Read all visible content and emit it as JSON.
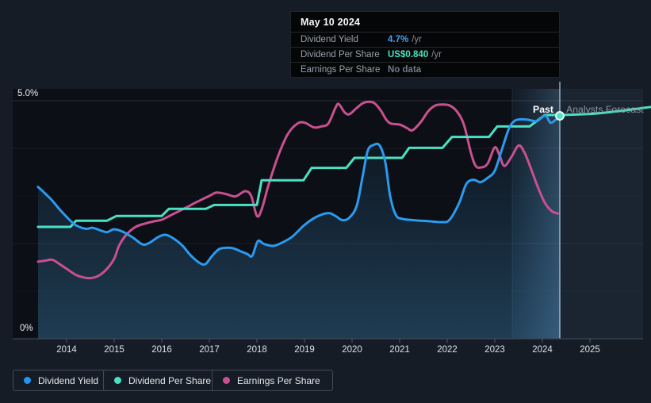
{
  "tooltip": {
    "date": "May 10 2024",
    "rows": [
      {
        "label": "Dividend Yield",
        "value": "4.7%",
        "suffix": "/yr",
        "color": "#3da3f5"
      },
      {
        "label": "Dividend Per Share",
        "value": "US$0.840",
        "suffix": "/yr",
        "color": "#46e3c2"
      },
      {
        "label": "Earnings Per Share",
        "value": "No data",
        "suffix": "",
        "color": "#737b86"
      }
    ]
  },
  "annotations": {
    "past": "Past",
    "forecast": "Analysts Forecast"
  },
  "y_axis": {
    "top_label": "5.0%",
    "bottom_label": "0%"
  },
  "legend": [
    {
      "label": "Dividend Yield",
      "color": "#2196f3"
    },
    {
      "label": "Dividend Per Share",
      "color": "#4be0c3"
    },
    {
      "label": "Earnings Per Share",
      "color": "#c9508f"
    }
  ],
  "chart_data": {
    "type": "line",
    "axis_units": "percent_yield_scale",
    "title": "",
    "xlabel": "",
    "ylabel": "",
    "x_ticks": [
      "2014",
      "2015",
      "2016",
      "2017",
      "2018",
      "2019",
      "2020",
      "2021",
      "2022",
      "2023",
      "2024",
      "2025"
    ],
    "x_range_years": [
      2013.4,
      2026.28
    ],
    "y_range_percent": [
      0,
      5.28
    ],
    "gridlines_percent": [
      5.0,
      4.0,
      2.0
    ],
    "grid": true,
    "legend_position": "bottom-left",
    "past_forecast_divider_year": 2024.37,
    "highlight_band_years": [
      2023.37,
      2024.37
    ],
    "marker_point": {
      "year": 2024.37,
      "value": 4.7
    },
    "series": [
      {
        "name": "Dividend Yield",
        "color": "#2b9af0",
        "style": "smooth",
        "area_fill": true,
        "points": [
          [
            2013.4,
            3.19
          ],
          [
            2013.55,
            3.05
          ],
          [
            2013.7,
            2.9
          ],
          [
            2013.85,
            2.72
          ],
          [
            2014.0,
            2.56
          ],
          [
            2014.1,
            2.46
          ],
          [
            2014.2,
            2.38
          ],
          [
            2014.4,
            2.31
          ],
          [
            2014.55,
            2.33
          ],
          [
            2014.7,
            2.28
          ],
          [
            2014.85,
            2.24
          ],
          [
            2015.0,
            2.3
          ],
          [
            2015.2,
            2.24
          ],
          [
            2015.4,
            2.12
          ],
          [
            2015.6,
            1.98
          ],
          [
            2015.75,
            2.02
          ],
          [
            2015.93,
            2.14
          ],
          [
            2016.1,
            2.18
          ],
          [
            2016.3,
            2.07
          ],
          [
            2016.45,
            1.94
          ],
          [
            2016.6,
            1.76
          ],
          [
            2016.8,
            1.59
          ],
          [
            2016.92,
            1.57
          ],
          [
            2017.05,
            1.73
          ],
          [
            2017.2,
            1.88
          ],
          [
            2017.35,
            1.91
          ],
          [
            2017.5,
            1.9
          ],
          [
            2017.65,
            1.84
          ],
          [
            2017.8,
            1.78
          ],
          [
            2017.9,
            1.74
          ],
          [
            2018.02,
            2.05
          ],
          [
            2018.15,
            1.99
          ],
          [
            2018.35,
            1.95
          ],
          [
            2018.55,
            2.03
          ],
          [
            2018.75,
            2.15
          ],
          [
            2019.0,
            2.39
          ],
          [
            2019.25,
            2.56
          ],
          [
            2019.5,
            2.64
          ],
          [
            2019.65,
            2.58
          ],
          [
            2019.8,
            2.49
          ],
          [
            2019.95,
            2.55
          ],
          [
            2020.1,
            2.8
          ],
          [
            2020.22,
            3.4
          ],
          [
            2020.33,
            3.95
          ],
          [
            2020.45,
            4.07
          ],
          [
            2020.58,
            4.06
          ],
          [
            2020.7,
            3.7
          ],
          [
            2020.8,
            3.0
          ],
          [
            2020.92,
            2.6
          ],
          [
            2021.05,
            2.52
          ],
          [
            2021.3,
            2.49
          ],
          [
            2021.6,
            2.47
          ],
          [
            2021.9,
            2.45
          ],
          [
            2022.05,
            2.5
          ],
          [
            2022.25,
            2.85
          ],
          [
            2022.4,
            3.25
          ],
          [
            2022.55,
            3.34
          ],
          [
            2022.7,
            3.29
          ],
          [
            2022.85,
            3.38
          ],
          [
            2023.0,
            3.53
          ],
          [
            2023.15,
            3.98
          ],
          [
            2023.3,
            4.42
          ],
          [
            2023.42,
            4.58
          ],
          [
            2023.55,
            4.61
          ],
          [
            2023.7,
            4.6
          ],
          [
            2023.88,
            4.57
          ],
          [
            2024.0,
            4.66
          ],
          [
            2024.08,
            4.68
          ],
          [
            2024.17,
            4.54
          ],
          [
            2024.28,
            4.6
          ],
          [
            2024.37,
            4.7
          ]
        ]
      },
      {
        "name": "Dividend Per Share",
        "color": "#4be0c3",
        "style": "step",
        "points": [
          [
            2013.4,
            2.35
          ],
          [
            2014.08,
            2.35
          ],
          [
            2014.2,
            2.48
          ],
          [
            2014.85,
            2.48
          ],
          [
            2015.05,
            2.58
          ],
          [
            2016.0,
            2.58
          ],
          [
            2016.15,
            2.73
          ],
          [
            2016.93,
            2.73
          ],
          [
            2017.1,
            2.81
          ],
          [
            2018.0,
            2.81
          ],
          [
            2018.1,
            3.33
          ],
          [
            2018.98,
            3.33
          ],
          [
            2019.15,
            3.59
          ],
          [
            2019.88,
            3.59
          ],
          [
            2020.05,
            3.8
          ],
          [
            2021.05,
            3.8
          ],
          [
            2021.2,
            4.01
          ],
          [
            2021.9,
            4.01
          ],
          [
            2022.1,
            4.24
          ],
          [
            2022.88,
            4.24
          ],
          [
            2023.05,
            4.46
          ],
          [
            2023.73,
            4.46
          ],
          [
            2023.85,
            4.55
          ],
          [
            2024.05,
            4.7
          ],
          [
            2024.37,
            4.7
          ]
        ]
      },
      {
        "name": "Dividend Per Share (Analysts Forecast)",
        "color": "#4be0c3",
        "style": "smooth",
        "points": [
          [
            2024.37,
            4.7
          ],
          [
            2024.7,
            4.71
          ],
          [
            2025.1,
            4.73
          ],
          [
            2025.5,
            4.77
          ],
          [
            2025.9,
            4.82
          ],
          [
            2026.28,
            4.87
          ]
        ]
      },
      {
        "name": "Earnings Per Share",
        "color": "#c9508f",
        "style": "smooth",
        "points": [
          [
            2013.4,
            1.62
          ],
          [
            2013.55,
            1.64
          ],
          [
            2013.7,
            1.66
          ],
          [
            2013.85,
            1.57
          ],
          [
            2014.0,
            1.47
          ],
          [
            2014.2,
            1.34
          ],
          [
            2014.4,
            1.28
          ],
          [
            2014.55,
            1.28
          ],
          [
            2014.7,
            1.34
          ],
          [
            2014.85,
            1.47
          ],
          [
            2015.0,
            1.68
          ],
          [
            2015.1,
            1.95
          ],
          [
            2015.25,
            2.18
          ],
          [
            2015.45,
            2.35
          ],
          [
            2015.65,
            2.42
          ],
          [
            2015.85,
            2.47
          ],
          [
            2016.0,
            2.5
          ],
          [
            2016.2,
            2.6
          ],
          [
            2016.5,
            2.75
          ],
          [
            2016.75,
            2.88
          ],
          [
            2017.0,
            3.0
          ],
          [
            2017.15,
            3.07
          ],
          [
            2017.35,
            3.04
          ],
          [
            2017.55,
            2.99
          ],
          [
            2017.75,
            3.1
          ],
          [
            2017.88,
            3.0
          ],
          [
            2018.0,
            2.58
          ],
          [
            2018.1,
            2.72
          ],
          [
            2018.25,
            3.25
          ],
          [
            2018.45,
            3.85
          ],
          [
            2018.65,
            4.3
          ],
          [
            2018.85,
            4.52
          ],
          [
            2019.0,
            4.54
          ],
          [
            2019.2,
            4.44
          ],
          [
            2019.35,
            4.46
          ],
          [
            2019.5,
            4.52
          ],
          [
            2019.65,
            4.85
          ],
          [
            2019.72,
            4.93
          ],
          [
            2019.85,
            4.75
          ],
          [
            2019.95,
            4.72
          ],
          [
            2020.1,
            4.85
          ],
          [
            2020.25,
            4.96
          ],
          [
            2020.45,
            4.96
          ],
          [
            2020.6,
            4.8
          ],
          [
            2020.72,
            4.6
          ],
          [
            2020.82,
            4.52
          ],
          [
            2021.0,
            4.5
          ],
          [
            2021.15,
            4.43
          ],
          [
            2021.27,
            4.38
          ],
          [
            2021.45,
            4.56
          ],
          [
            2021.6,
            4.78
          ],
          [
            2021.75,
            4.9
          ],
          [
            2021.9,
            4.92
          ],
          [
            2022.05,
            4.9
          ],
          [
            2022.2,
            4.78
          ],
          [
            2022.35,
            4.5
          ],
          [
            2022.5,
            3.9
          ],
          [
            2022.6,
            3.63
          ],
          [
            2022.72,
            3.6
          ],
          [
            2022.85,
            3.68
          ],
          [
            2023.0,
            4.02
          ],
          [
            2023.1,
            3.85
          ],
          [
            2023.2,
            3.63
          ],
          [
            2023.35,
            3.82
          ],
          [
            2023.5,
            4.06
          ],
          [
            2023.62,
            3.92
          ],
          [
            2023.75,
            3.6
          ],
          [
            2023.9,
            3.2
          ],
          [
            2024.05,
            2.86
          ],
          [
            2024.2,
            2.68
          ],
          [
            2024.33,
            2.63
          ]
        ]
      }
    ]
  }
}
